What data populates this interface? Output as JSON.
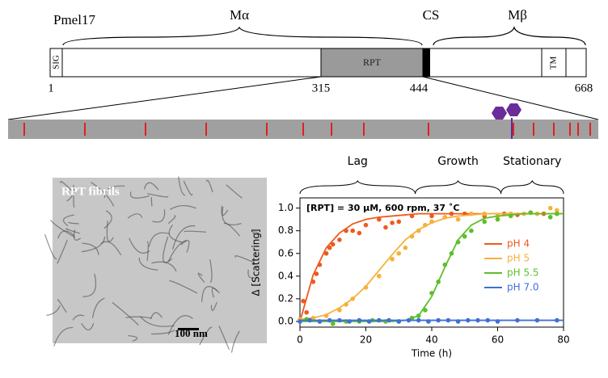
{
  "diagram": {
    "protein": "Pmel17",
    "regions": {
      "m_alpha": "Mα",
      "cs": "CS",
      "m_beta": "Mβ"
    },
    "domains": {
      "sig": "SIG",
      "rpt": "RPT",
      "tm": "TM"
    },
    "positions": [
      1,
      315,
      444,
      668
    ]
  },
  "micrograph": {
    "label": "RPT fibrils",
    "scale_bar": "100 nm"
  },
  "chart_data": {
    "type": "scatter",
    "annotation": "[RPT] = 30 µM, 600 rpm, 37 ˚C",
    "x_label": "Time (h)",
    "y_label": "Δ [Scattering]",
    "phases": [
      {
        "label": "Lag",
        "start": 0,
        "end": 35
      },
      {
        "label": "Growth",
        "start": 35,
        "end": 61
      },
      {
        "label": "Stationary",
        "start": 61,
        "end": 80
      }
    ],
    "xlim": [
      0,
      80
    ],
    "xticks": [
      0,
      20,
      40,
      60,
      80
    ],
    "ylim": [
      -0.05,
      1.09
    ],
    "yticks": [
      {
        "value": 0,
        "label": "0.0"
      },
      0.2,
      0.4,
      0.6,
      0.8,
      {
        "value": 1,
        "label": "1.0"
      }
    ],
    "legend": "right",
    "fit_x": [
      0,
      4,
      8,
      12,
      16,
      20,
      24,
      28,
      32,
      36,
      40,
      44,
      48,
      52,
      56,
      60,
      64,
      68,
      72,
      76,
      80
    ],
    "series": [
      {
        "name": "pH 4",
        "color": "#ee5a1e",
        "x": [
          1,
          2,
          4,
          5,
          6,
          8,
          9,
          10,
          12,
          14,
          16,
          18,
          20,
          24,
          26,
          28,
          30,
          34,
          40,
          46,
          50,
          56,
          62,
          66,
          70,
          74,
          78
        ],
        "values": [
          0.18,
          0.08,
          0.35,
          0.42,
          0.5,
          0.6,
          0.65,
          0.68,
          0.72,
          0.8,
          0.8,
          0.78,
          0.85,
          0.9,
          0.83,
          0.87,
          0.88,
          0.93,
          0.93,
          0.95,
          0.95,
          0.93,
          0.95,
          0.94,
          0.96,
          0.95,
          0.95
        ],
        "fit": [
          0,
          0.41,
          0.65,
          0.78,
          0.86,
          0.9,
          0.92,
          0.93,
          0.94,
          0.95,
          0.95,
          0.95,
          0.95,
          0.95,
          0.95,
          0.95,
          0.95,
          0.95,
          0.95,
          0.95,
          0.95
        ]
      },
      {
        "name": "pH 5",
        "color": "#f5b13a",
        "x": [
          0,
          4,
          8,
          12,
          14,
          16,
          20,
          24,
          28,
          30,
          32,
          34,
          36,
          38,
          40,
          44,
          48,
          52,
          56,
          60,
          64,
          68,
          72,
          76,
          78
        ],
        "values": [
          0.02,
          0.03,
          0.05,
          0.1,
          0.15,
          0.2,
          0.3,
          0.4,
          0.55,
          0.6,
          0.65,
          0.75,
          0.8,
          0.85,
          0.88,
          0.92,
          0.9,
          0.95,
          0.95,
          0.93,
          0.95,
          0.95,
          0.95,
          1.0,
          0.98
        ],
        "fit": [
          0.02,
          0.03,
          0.06,
          0.12,
          0.2,
          0.31,
          0.45,
          0.59,
          0.72,
          0.81,
          0.87,
          0.91,
          0.93,
          0.94,
          0.95,
          0.95,
          0.95,
          0.95,
          0.95,
          0.95,
          0.95
        ]
      },
      {
        "name": "pH 5.5",
        "color": "#5cbf2a",
        "x": [
          2,
          6,
          10,
          14,
          18,
          22,
          26,
          30,
          34,
          36,
          38,
          40,
          42,
          44,
          46,
          48,
          50,
          52,
          56,
          60,
          64,
          70,
          76,
          78
        ],
        "values": [
          0.02,
          0,
          -0.02,
          0,
          0,
          0.01,
          0,
          0,
          0.03,
          0.05,
          0.1,
          0.25,
          0.35,
          0.5,
          0.6,
          0.7,
          0.75,
          0.8,
          0.88,
          0.9,
          0.93,
          0.96,
          0.92,
          0.95
        ],
        "fit": [
          0,
          0,
          0,
          0,
          0,
          0,
          0,
          0,
          0.01,
          0.05,
          0.22,
          0.48,
          0.72,
          0.85,
          0.91,
          0.93,
          0.94,
          0.95,
          0.95,
          0.95,
          0.95
        ]
      },
      {
        "name": "pH 7.0",
        "color": "#3f6fd8",
        "x": [
          0,
          3,
          6,
          9,
          12,
          15,
          18,
          21,
          24,
          27,
          30,
          33,
          36,
          39,
          42,
          45,
          48,
          51,
          54,
          57,
          60,
          66,
          72,
          78
        ],
        "values": [
          0,
          0.01,
          0,
          0.01,
          0.01,
          0,
          0.01,
          0,
          0.01,
          0.01,
          0,
          0.01,
          0.01,
          0,
          0.01,
          0.01,
          0,
          0.01,
          0.01,
          0.01,
          0,
          0.01,
          0.01,
          0.01
        ],
        "fit": [
          0.01,
          0.01,
          0.01,
          0.01,
          0.01,
          0.01,
          0.01,
          0.01,
          0.01,
          0.01,
          0.01,
          0.01,
          0.01,
          0.01,
          0.01,
          0.01,
          0.01,
          0.01,
          0.01,
          0.01,
          0.01
        ]
      }
    ]
  }
}
